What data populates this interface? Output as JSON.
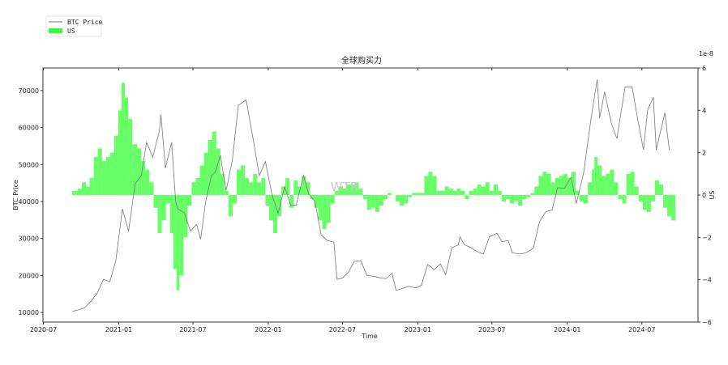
{
  "chart_data": {
    "type": "bar+line",
    "title": "全球购买力",
    "xlabel": "Time",
    "ylabel_left": "BTC Price",
    "ylabel_right": "US",
    "right_axis_offset_label": "1e-8",
    "watermark": "WTR",
    "xlim": [
      "2020-06-30",
      "2024-11-15"
    ],
    "ylim_left": [
      7400,
      76100
    ],
    "ylim_right": [
      -6,
      6
    ],
    "x_ticks": [
      "2020-07",
      "2021-01",
      "2021-07",
      "2022-01",
      "2022-07",
      "2023-01",
      "2023-07",
      "2024-01",
      "2024-07"
    ],
    "y_ticks_left": [
      10000,
      20000,
      30000,
      40000,
      50000,
      60000,
      70000
    ],
    "y_ticks_right": [
      -6,
      -4,
      -2,
      0,
      2,
      4,
      6
    ],
    "grid": false,
    "legend": {
      "placement": "top-left",
      "entries": [
        "BTC Price",
        "US"
      ]
    },
    "colors": {
      "btc_line": "#777777",
      "us_bar": "#33ff33"
    },
    "series": [
      {
        "name": "BTC Price",
        "type": "line",
        "axis": "left",
        "x": [
          "2020-09-10",
          "2020-09-25",
          "2020-10-10",
          "2020-10-25",
          "2020-11-10",
          "2020-11-25",
          "2020-12-10",
          "2020-12-25",
          "2021-01-10",
          "2021-01-25",
          "2021-02-10",
          "2021-02-25",
          "2021-03-10",
          "2021-03-25",
          "2021-04-10",
          "2021-04-14",
          "2021-04-25",
          "2021-05-10",
          "2021-05-20",
          "2021-05-25",
          "2021-06-10",
          "2021-06-25",
          "2021-07-10",
          "2021-07-20",
          "2021-08-01",
          "2021-08-15",
          "2021-08-25",
          "2021-09-06",
          "2021-09-20",
          "2021-10-05",
          "2021-10-20",
          "2021-11-08",
          "2021-11-25",
          "2021-12-10",
          "2021-12-25",
          "2022-01-10",
          "2022-01-25",
          "2022-02-10",
          "2022-02-25",
          "2022-03-10",
          "2022-03-28",
          "2022-04-10",
          "2022-04-25",
          "2022-05-10",
          "2022-05-25",
          "2022-06-10",
          "2022-06-18",
          "2022-07-01",
          "2022-07-15",
          "2022-07-30",
          "2022-08-15",
          "2022-08-30",
          "2022-09-15",
          "2022-09-30",
          "2022-10-15",
          "2022-10-30",
          "2022-11-09",
          "2022-11-25",
          "2022-12-10",
          "2022-12-28",
          "2023-01-10",
          "2023-01-25",
          "2023-02-10",
          "2023-02-25",
          "2023-03-10",
          "2023-03-25",
          "2023-04-10",
          "2023-04-14",
          "2023-04-25",
          "2023-05-10",
          "2023-05-25",
          "2023-06-10",
          "2023-06-25",
          "2023-07-13",
          "2023-07-25",
          "2023-08-10",
          "2023-08-20",
          "2023-09-10",
          "2023-09-25",
          "2023-10-10",
          "2023-10-25",
          "2023-11-10",
          "2023-11-25",
          "2023-12-08",
          "2023-12-25",
          "2024-01-10",
          "2024-01-23",
          "2024-02-10",
          "2024-02-28",
          "2024-03-14",
          "2024-03-20",
          "2024-04-01",
          "2024-04-17",
          "2024-05-01",
          "2024-05-21",
          "2024-06-07",
          "2024-06-24",
          "2024-07-05",
          "2024-07-15",
          "2024-07-29",
          "2024-08-05",
          "2024-08-20",
          "2024-08-26",
          "2024-09-06"
        ],
        "y": [
          10300,
          10700,
          11300,
          13000,
          15300,
          19000,
          18300,
          24000,
          38000,
          32000,
          44800,
          47000,
          56000,
          52000,
          59000,
          63500,
          49000,
          56000,
          40000,
          38000,
          37000,
          32000,
          33800,
          29800,
          39800,
          47000,
          48000,
          52500,
          43000,
          51000,
          66000,
          67500,
          57000,
          47000,
          50800,
          41800,
          36800,
          44000,
          39000,
          39000,
          47000,
          42000,
          40000,
          31000,
          29500,
          29000,
          19000,
          19300,
          20800,
          23800,
          24000,
          20000,
          19800,
          19400,
          19100,
          20600,
          16000,
          16500,
          17100,
          16600,
          17400,
          23000,
          21600,
          23100,
          20200,
          27500,
          28300,
          30400,
          28300,
          27600,
          26500,
          25800,
          30500,
          31400,
          29200,
          29400,
          26100,
          25800,
          26300,
          27400,
          34500,
          37300,
          37700,
          43700,
          43600,
          46600,
          39500,
          47800,
          62500,
          73000,
          62500,
          69700,
          61300,
          57000,
          71000,
          71000,
          60300,
          54000,
          64700,
          68200,
          54000,
          61000,
          64000,
          54000
        ]
      },
      {
        "name": "US",
        "type": "bar",
        "axis": "right",
        "unit_multiplier": "1e-8",
        "x": [
          "2020-09-09",
          "2020-09-23",
          "2020-10-03",
          "2020-10-13",
          "2020-10-22",
          "2020-11-01",
          "2020-11-11",
          "2020-11-21",
          "2020-12-01",
          "2020-12-11",
          "2020-12-21",
          "2020-12-31",
          "2021-01-08",
          "2021-01-16",
          "2021-01-24",
          "2021-02-03",
          "2021-02-15",
          "2021-02-25",
          "2021-03-07",
          "2021-03-17",
          "2021-03-27",
          "2021-04-06",
          "2021-04-16",
          "2021-04-26",
          "2021-05-06",
          "2021-05-14",
          "2021-05-22",
          "2021-05-29",
          "2021-06-08",
          "2021-06-18",
          "2021-06-28",
          "2021-07-08",
          "2021-07-18",
          "2021-07-28",
          "2021-08-07",
          "2021-08-17",
          "2021-08-27",
          "2021-09-06",
          "2021-09-16",
          "2021-09-26",
          "2021-10-06",
          "2021-10-16",
          "2021-10-26",
          "2021-11-05",
          "2021-11-15",
          "2021-11-25",
          "2021-12-05",
          "2021-12-15",
          "2021-12-25",
          "2022-01-03",
          "2022-01-13",
          "2022-01-23",
          "2022-02-02",
          "2022-02-12",
          "2022-02-22",
          "2022-03-04",
          "2022-03-14",
          "2022-03-24",
          "2022-04-03",
          "2022-04-13",
          "2022-04-23",
          "2022-05-03",
          "2022-05-13",
          "2022-05-23",
          "2022-06-02",
          "2022-06-12",
          "2022-06-22",
          "2022-07-02",
          "2022-07-12",
          "2022-07-22",
          "2022-07-31",
          "2022-08-10",
          "2022-08-20",
          "2022-08-30",
          "2022-09-09",
          "2022-09-19",
          "2022-09-29",
          "2022-10-09",
          "2022-10-19",
          "2022-10-29",
          "2022-11-08",
          "2022-11-18",
          "2022-11-28",
          "2022-12-08",
          "2022-12-18",
          "2022-12-28",
          "2023-01-07",
          "2023-01-17",
          "2023-01-27",
          "2023-02-06",
          "2023-02-16",
          "2023-02-26",
          "2023-03-08",
          "2023-03-18",
          "2023-03-28",
          "2023-04-06",
          "2023-04-16",
          "2023-04-26",
          "2023-05-06",
          "2023-05-16",
          "2023-05-26",
          "2023-06-05",
          "2023-06-15",
          "2023-06-25",
          "2023-07-05",
          "2023-07-15",
          "2023-07-25",
          "2023-08-04",
          "2023-08-14",
          "2023-08-24",
          "2023-09-03",
          "2023-09-13",
          "2023-09-23",
          "2023-10-03",
          "2023-10-13",
          "2023-10-23",
          "2023-11-02",
          "2023-11-12",
          "2023-11-22",
          "2023-12-02",
          "2023-12-12",
          "2023-12-22",
          "2024-01-01",
          "2024-01-11",
          "2024-01-21",
          "2024-01-31",
          "2024-02-10",
          "2024-02-20",
          "2024-03-01",
          "2024-03-07",
          "2024-03-15",
          "2024-03-25",
          "2024-04-04",
          "2024-04-14",
          "2024-04-24",
          "2024-05-04",
          "2024-05-14",
          "2024-05-24",
          "2024-06-03",
          "2024-06-13",
          "2024-06-23",
          "2024-07-03",
          "2024-07-13",
          "2024-07-23",
          "2024-08-02",
          "2024-08-12",
          "2024-08-22",
          "2024-09-01",
          "2024-09-11"
        ],
        "y": [
          0.2,
          0.3,
          0.6,
          0.4,
          0.8,
          1.8,
          2.2,
          1.6,
          1.8,
          2.0,
          2.8,
          4.0,
          5.3,
          4.6,
          3.6,
          2.4,
          2.2,
          1.6,
          1.2,
          0.6,
          -0.6,
          -1.8,
          -1.2,
          -0.4,
          -1.8,
          -3.5,
          -4.5,
          -3.8,
          -2.0,
          -0.5,
          0.6,
          0.8,
          1.4,
          2.0,
          2.6,
          3.0,
          2.2,
          1.0,
          0.2,
          -1.0,
          -0.4,
          1.2,
          1.4,
          0.8,
          0.6,
          1.0,
          0.6,
          0.8,
          -0.5,
          -1.2,
          -1.8,
          -1.0,
          0.4,
          0.8,
          -0.6,
          0.7,
          0.4,
          0.9,
          0.6,
          -0.2,
          -0.6,
          -1.2,
          -1.6,
          -1.3,
          -0.4,
          0.2,
          0.4,
          0.3,
          0.5,
          0.5,
          0.6,
          0.3,
          -0.2,
          -0.7,
          -0.6,
          -0.8,
          -0.5,
          -0.2,
          0.1,
          0.0,
          -0.3,
          -0.5,
          -0.4,
          -0.1,
          0.1,
          0.1,
          0.1,
          0.9,
          1.1,
          0.9,
          0.2,
          0.2,
          0.4,
          0.3,
          0.2,
          0.3,
          0.2,
          -0.2,
          0.2,
          0.3,
          0.5,
          0.4,
          0.6,
          0.2,
          0.5,
          0.2,
          -0.3,
          -0.2,
          -0.4,
          -0.3,
          -0.5,
          -0.2,
          -0.1,
          0.1,
          0.4,
          0.9,
          1.1,
          1.0,
          0.6,
          0.8,
          0.9,
          1.0,
          0.8,
          1.1,
          0.2,
          -0.3,
          -0.4,
          0.6,
          1.2,
          1.8,
          1.4,
          0.9,
          1.0,
          1.2,
          0.6,
          -0.2,
          -0.4,
          1.0,
          1.1,
          0.4,
          -0.3,
          -0.7,
          -0.8,
          -0.3,
          0.7,
          0.5,
          -0.6,
          -1.0,
          -1.2
        ]
      }
    ]
  }
}
